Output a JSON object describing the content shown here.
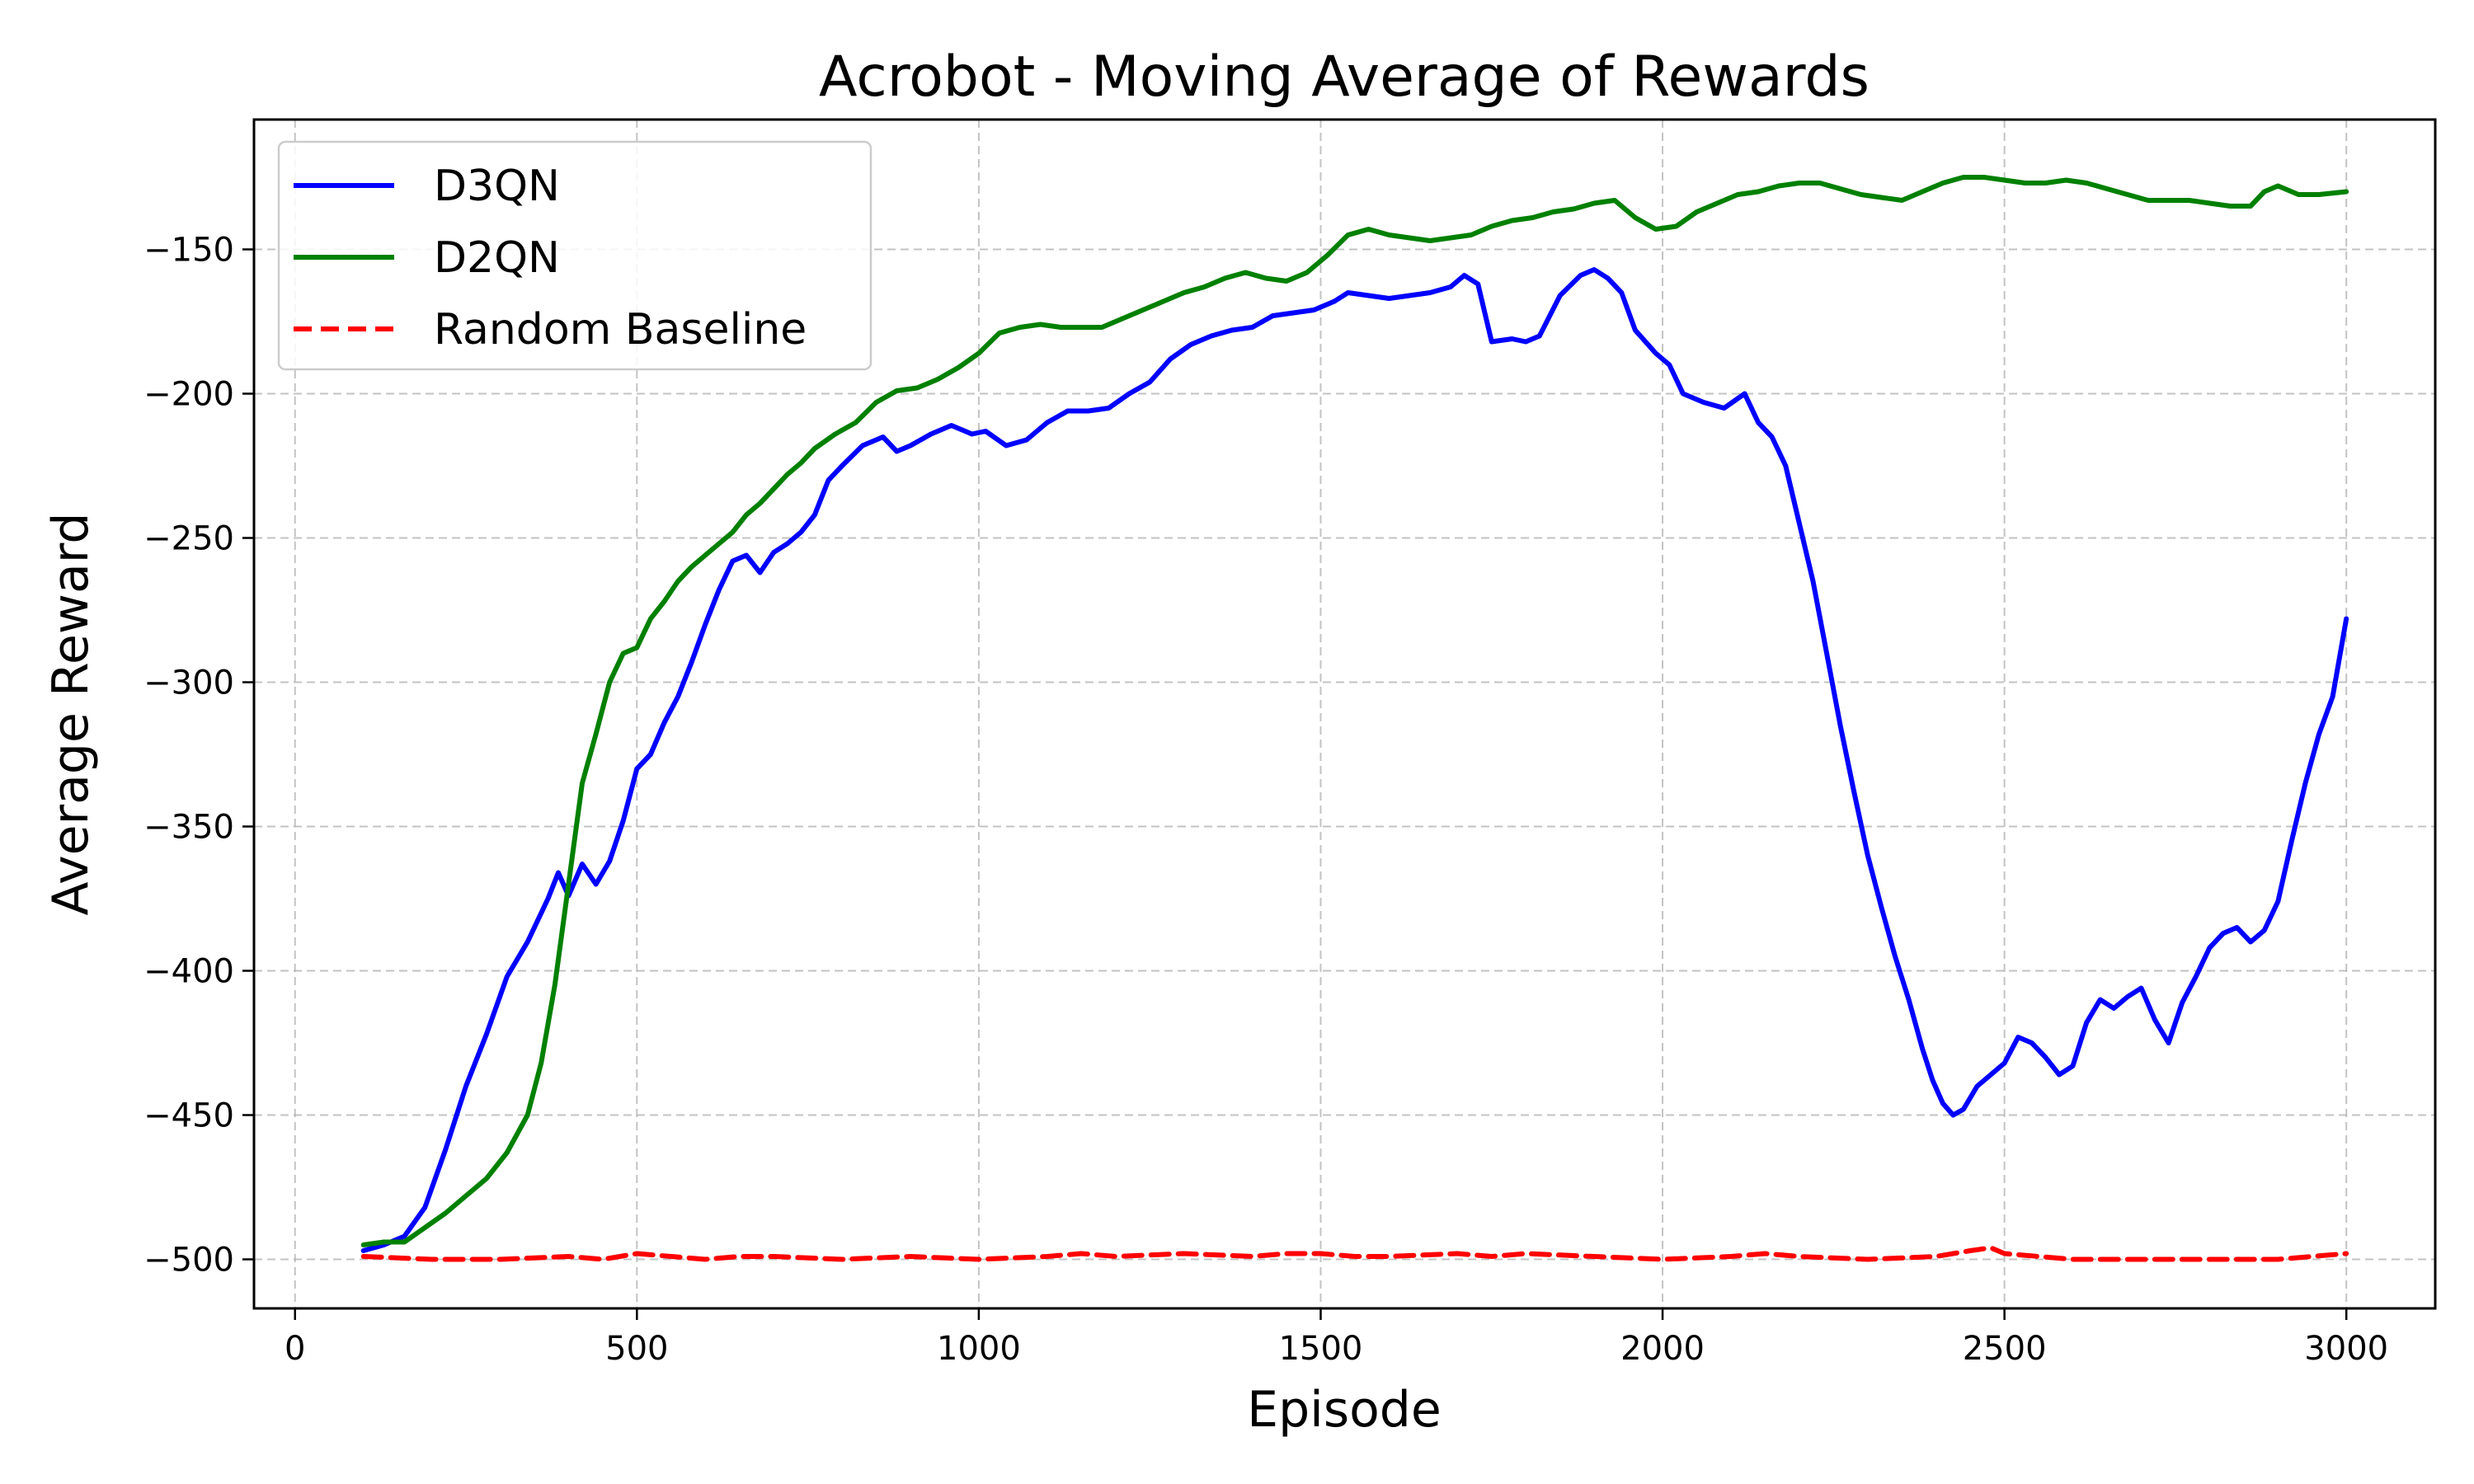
{
  "chart_data": {
    "type": "line",
    "title": "Acrobot - Moving Average of Rewards",
    "xlabel": "Episode",
    "ylabel": "Average Reward",
    "xlim": [
      -60,
      3130
    ],
    "ylim": [
      -517,
      -105
    ],
    "xticks": [
      0,
      500,
      1000,
      1500,
      2000,
      2500,
      3000
    ],
    "xtick_labels": [
      "0",
      "500",
      "1000",
      "1500",
      "2000",
      "2500",
      "3000"
    ],
    "yticks": [
      -500,
      -450,
      -400,
      -350,
      -300,
      -250,
      -200,
      -150
    ],
    "ytick_labels": [
      "−500",
      "−450",
      "−400",
      "−350",
      "−300",
      "−250",
      "−200",
      "−150"
    ],
    "grid": true,
    "legend_position": "top-left",
    "series": [
      {
        "name": "D3QN",
        "color": "#0000ff",
        "style": "solid",
        "x": [
          100,
          130,
          160,
          190,
          220,
          250,
          280,
          310,
          340,
          370,
          385,
          400,
          420,
          440,
          460,
          480,
          500,
          520,
          540,
          560,
          580,
          600,
          620,
          640,
          660,
          680,
          700,
          720,
          740,
          760,
          780,
          800,
          830,
          860,
          880,
          900,
          930,
          960,
          990,
          1010,
          1040,
          1070,
          1100,
          1130,
          1160,
          1190,
          1220,
          1250,
          1280,
          1310,
          1340,
          1370,
          1400,
          1430,
          1460,
          1490,
          1520,
          1540,
          1570,
          1600,
          1630,
          1660,
          1690,
          1710,
          1730,
          1750,
          1780,
          1800,
          1820,
          1850,
          1880,
          1900,
          1920,
          1940,
          1960,
          1990,
          2010,
          2030,
          2060,
          2090,
          2120,
          2140,
          2160,
          2180,
          2200,
          2220,
          2240,
          2260,
          2280,
          2300,
          2320,
          2340,
          2360,
          2380,
          2395,
          2410,
          2425,
          2440,
          2460,
          2480,
          2500,
          2520,
          2540,
          2560,
          2580,
          2600,
          2620,
          2640,
          2660,
          2680,
          2700,
          2720,
          2740,
          2760,
          2780,
          2800,
          2820,
          2840,
          2860,
          2880,
          2900,
          2920,
          2940,
          2960,
          2980,
          3000
        ],
        "y": [
          -497,
          -495,
          -492,
          -482,
          -462,
          -440,
          -422,
          -402,
          -390,
          -375,
          -366,
          -374,
          -363,
          -370,
          -362,
          -348,
          -330,
          -325,
          -314,
          -305,
          -293,
          -280,
          -268,
          -258,
          -256,
          -262,
          -255,
          -252,
          -248,
          -242,
          -230,
          -225,
          -218,
          -215,
          -220,
          -218,
          -214,
          -211,
          -214,
          -213,
          -218,
          -216,
          -210,
          -206,
          -206,
          -205,
          -200,
          -196,
          -188,
          -183,
          -180,
          -178,
          -177,
          -173,
          -172,
          -171,
          -168,
          -165,
          -166,
          -167,
          -166,
          -165,
          -163,
          -159,
          -162,
          -182,
          -181,
          -182,
          -180,
          -166,
          -159,
          -157,
          -160,
          -165,
          -178,
          -186,
          -190,
          -200,
          -203,
          -205,
          -200,
          -210,
          -215,
          -225,
          -245,
          -265,
          -290,
          -315,
          -338,
          -360,
          -378,
          -395,
          -410,
          -427,
          -438,
          -446,
          -450,
          -448,
          -440,
          -436,
          -432,
          -423,
          -425,
          -430,
          -436,
          -433,
          -418,
          -410,
          -413,
          -409,
          -406,
          -417,
          -425,
          -411,
          -402,
          -392,
          -387,
          -385,
          -390,
          -386,
          -376,
          -355,
          -335,
          -318,
          -305,
          -278
        ]
      },
      {
        "name": "D2QN",
        "color": "#008000",
        "style": "solid",
        "x": [
          100,
          130,
          160,
          190,
          220,
          250,
          280,
          310,
          340,
          360,
          380,
          400,
          420,
          440,
          460,
          480,
          500,
          520,
          540,
          560,
          580,
          600,
          620,
          640,
          660,
          680,
          700,
          720,
          740,
          760,
          790,
          820,
          850,
          880,
          910,
          940,
          970,
          1000,
          1030,
          1060,
          1090,
          1120,
          1150,
          1180,
          1210,
          1240,
          1270,
          1300,
          1330,
          1360,
          1390,
          1420,
          1450,
          1480,
          1510,
          1540,
          1570,
          1600,
          1630,
          1660,
          1690,
          1720,
          1750,
          1780,
          1810,
          1840,
          1870,
          1900,
          1930,
          1960,
          1990,
          2020,
          2050,
          2080,
          2110,
          2140,
          2170,
          2200,
          2230,
          2260,
          2290,
          2320,
          2350,
          2380,
          2410,
          2440,
          2470,
          2500,
          2530,
          2560,
          2590,
          2620,
          2650,
          2680,
          2710,
          2740,
          2770,
          2800,
          2830,
          2860,
          2880,
          2900,
          2930,
          2960,
          3000
        ],
        "y": [
          -495,
          -494,
          -494,
          -489,
          -484,
          -478,
          -472,
          -463,
          -450,
          -432,
          -405,
          -370,
          -335,
          -318,
          -300,
          -290,
          -288,
          -278,
          -272,
          -265,
          -260,
          -256,
          -252,
          -248,
          -242,
          -238,
          -233,
          -228,
          -224,
          -219,
          -214,
          -210,
          -203,
          -199,
          -198,
          -195,
          -191,
          -186,
          -179,
          -177,
          -176,
          -177,
          -177,
          -177,
          -174,
          -171,
          -168,
          -165,
          -163,
          -160,
          -158,
          -160,
          -161,
          -158,
          -152,
          -145,
          -143,
          -145,
          -146,
          -147,
          -146,
          -145,
          -142,
          -140,
          -139,
          -137,
          -136,
          -134,
          -133,
          -139,
          -143,
          -142,
          -137,
          -134,
          -131,
          -130,
          -128,
          -127,
          -127,
          -129,
          -131,
          -132,
          -133,
          -130,
          -127,
          -125,
          -125,
          -126,
          -127,
          -127,
          -126,
          -127,
          -129,
          -131,
          -133,
          -133,
          -133,
          -134,
          -135,
          -135,
          -130,
          -128,
          -131,
          -131,
          -130
        ]
      },
      {
        "name": "Random Baseline",
        "color": "#ff0000",
        "style": "dashed",
        "x": [
          100,
          200,
          300,
          400,
          450,
          500,
          550,
          600,
          650,
          700,
          800,
          900,
          1000,
          1100,
          1150,
          1200,
          1300,
          1400,
          1450,
          1500,
          1550,
          1600,
          1700,
          1750,
          1800,
          1900,
          2000,
          2100,
          2150,
          2200,
          2300,
          2400,
          2450,
          2480,
          2500,
          2550,
          2600,
          2700,
          2800,
          2900,
          3000
        ],
        "y": [
          -499,
          -500,
          -500,
          -499,
          -500,
          -498,
          -499,
          -500,
          -499,
          -499,
          -500,
          -499,
          -500,
          -499,
          -498,
          -499,
          -498,
          -499,
          -498,
          -498,
          -499,
          -499,
          -498,
          -499,
          -498,
          -499,
          -500,
          -499,
          -498,
          -499,
          -500,
          -499,
          -497,
          -496,
          -498,
          -499,
          -500,
          -500,
          -500,
          -500,
          -498
        ]
      }
    ]
  }
}
